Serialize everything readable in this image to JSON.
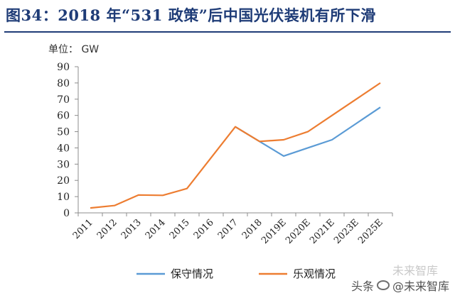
{
  "title": "图34：2018 年“531 政策”后中国光伏装机有所下滑",
  "unit_label": "单位：  GW",
  "watermark": {
    "prefix": "头条",
    "handle": "@未来智库",
    "ghost": "未来智库"
  },
  "colors": {
    "title": "#1f3c77",
    "conservative": "#5b9bd5",
    "optimistic": "#ed7d31"
  },
  "chart_data": {
    "type": "line",
    "title": "",
    "xlabel": "",
    "ylabel": "单位：  GW",
    "ylim": [
      0,
      90
    ],
    "yticks": [
      0,
      10,
      20,
      30,
      40,
      50,
      60,
      70,
      80,
      90
    ],
    "categories": [
      "2011",
      "2012",
      "2013",
      "2014",
      "2015",
      "2016",
      "2017",
      "2018",
      "2019E",
      "2020E",
      "2021E",
      "2023E",
      "2025E"
    ],
    "grid": false,
    "legend_position": "bottom",
    "series": [
      {
        "name": "保守情况",
        "color": "#5b9bd5",
        "values": [
          null,
          null,
          null,
          null,
          null,
          null,
          53,
          44,
          35,
          40,
          45,
          55,
          65
        ]
      },
      {
        "name": "乐观情况",
        "color": "#ed7d31",
        "values": [
          3,
          4.5,
          11,
          10.8,
          15,
          34,
          53,
          44,
          45,
          50,
          60,
          70,
          80
        ]
      }
    ]
  }
}
